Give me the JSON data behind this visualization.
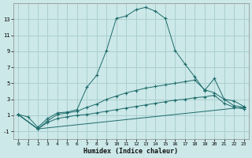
{
  "xlabel": "Humidex (Indice chaleur)",
  "background_color": "#cce8e8",
  "grid_color": "#aacfcf",
  "line_color": "#1e6b6b",
  "xlim": [
    -0.5,
    23.5
  ],
  "ylim": [
    -2,
    15
  ],
  "yticks": [
    -1,
    1,
    3,
    5,
    7,
    9,
    11,
    13
  ],
  "xticks": [
    0,
    1,
    2,
    3,
    4,
    5,
    6,
    7,
    8,
    9,
    10,
    11,
    12,
    13,
    14,
    15,
    16,
    17,
    18,
    19,
    20,
    21,
    22,
    23
  ],
  "line1_x": [
    0,
    1,
    2,
    3,
    4,
    5,
    6,
    7,
    8,
    9,
    10,
    11,
    12,
    13,
    14,
    15,
    16,
    17,
    18,
    19,
    20,
    21,
    22,
    23
  ],
  "line1_y": [
    1.1,
    0.8,
    -0.5,
    0.6,
    1.3,
    1.4,
    1.7,
    4.5,
    6.0,
    9.1,
    13.1,
    13.4,
    14.2,
    14.5,
    14.0,
    13.1,
    9.1,
    7.4,
    5.8,
    4.1,
    5.6,
    3.0,
    2.8,
    2.1
  ],
  "line2_x": [
    0,
    2,
    3,
    4,
    5,
    6,
    7,
    8,
    9,
    10,
    11,
    12,
    13,
    14,
    15,
    16,
    17,
    18,
    19,
    20,
    21,
    22,
    23
  ],
  "line2_y": [
    1.1,
    -0.7,
    0.3,
    1.1,
    1.3,
    1.5,
    2.0,
    2.4,
    3.0,
    3.4,
    3.8,
    4.1,
    4.4,
    4.6,
    4.8,
    5.0,
    5.2,
    5.4,
    4.2,
    3.8,
    3.0,
    2.2,
    2.0
  ],
  "line3_x": [
    0,
    2,
    3,
    4,
    5,
    6,
    7,
    8,
    9,
    10,
    11,
    12,
    13,
    14,
    15,
    16,
    17,
    18,
    19,
    20,
    21,
    22,
    23
  ],
  "line3_y": [
    1.1,
    -0.7,
    0.1,
    0.6,
    0.8,
    1.0,
    1.1,
    1.3,
    1.5,
    1.7,
    1.9,
    2.1,
    2.3,
    2.5,
    2.7,
    2.9,
    3.0,
    3.2,
    3.3,
    3.5,
    2.5,
    2.0,
    1.8
  ],
  "line4_x": [
    0,
    2,
    23
  ],
  "line4_y": [
    1.1,
    -0.7,
    2.0
  ]
}
